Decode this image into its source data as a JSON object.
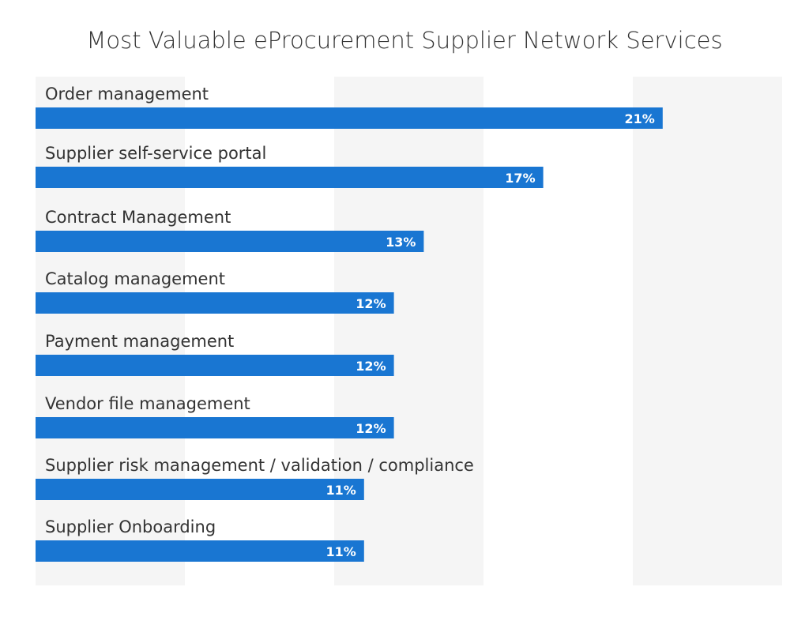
{
  "chart_data": {
    "type": "bar",
    "orientation": "horizontal",
    "title": "Most Valuable eProcurement Supplier Network Services",
    "categories": [
      "Order management",
      "Supplier self-service portal",
      "Contract Management",
      "Catalog management",
      "Payment management",
      "Vendor file management",
      "Supplier risk management / validation / compliance",
      "Supplier Onboarding"
    ],
    "values": [
      21,
      17,
      13,
      12,
      12,
      12,
      11,
      11
    ],
    "data_labels": [
      "21%",
      "17%",
      "13%",
      "12%",
      "12%",
      "12%",
      "11%",
      "11%"
    ],
    "unit": "%",
    "xlim": [
      0,
      25
    ],
    "grid": "alternating vertical bands",
    "colors": {
      "bar": "#1976d2",
      "band": "#f5f5f5",
      "label": "#333333",
      "value_label": "#ffffff"
    }
  }
}
